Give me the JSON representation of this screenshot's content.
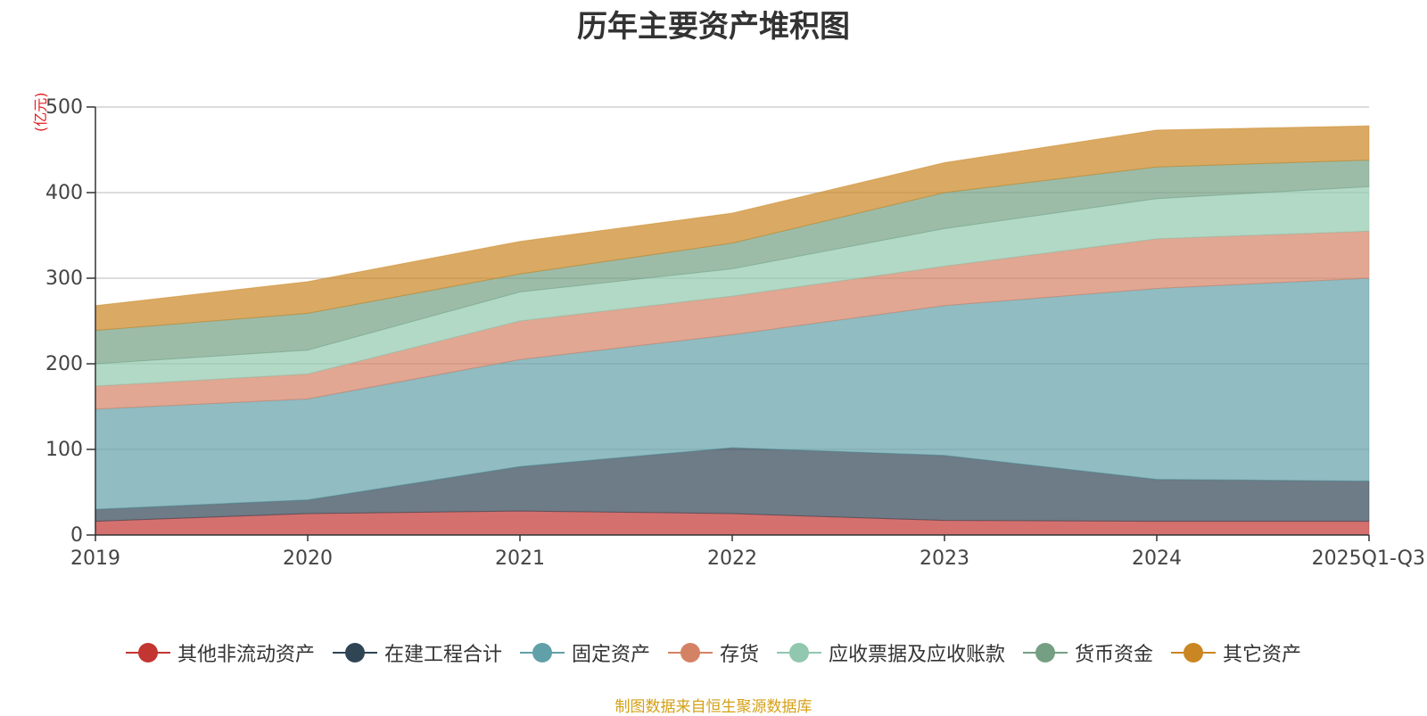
{
  "chart_data": {
    "type": "area",
    "stacked": true,
    "title": "历年主要资产堆积图",
    "ylabel": "(亿元)",
    "xlabel": "",
    "ylim": [
      0,
      500
    ],
    "yticks": [
      0,
      100,
      200,
      300,
      400,
      500
    ],
    "categories": [
      "2019",
      "2020",
      "2021",
      "2022",
      "2023",
      "2024",
      "2025Q1-Q3"
    ],
    "series": [
      {
        "name": "其他非流动资产",
        "color": "#c23531",
        "values": [
          16,
          25,
          28,
          25,
          17,
          16,
          16
        ]
      },
      {
        "name": "在建工程合计",
        "color": "#2f4554",
        "values": [
          14,
          16,
          52,
          77,
          76,
          49,
          47
        ]
      },
      {
        "name": "固定资产",
        "color": "#61a0a8",
        "values": [
          117,
          118,
          125,
          132,
          175,
          223,
          237
        ]
      },
      {
        "name": "存货",
        "color": "#d48265",
        "values": [
          27,
          29,
          45,
          45,
          46,
          58,
          55
        ]
      },
      {
        "name": "应收票据及应收账款",
        "color": "#91c7ae",
        "values": [
          26,
          28,
          34,
          32,
          44,
          47,
          52
        ]
      },
      {
        "name": "货币资金",
        "color": "#749f83",
        "values": [
          39,
          43,
          21,
          30,
          42,
          37,
          31
        ]
      },
      {
        "name": "其它资产",
        "color": "#ca8622",
        "values": [
          29,
          37,
          38,
          35,
          35,
          43,
          40
        ]
      }
    ],
    "grid": true,
    "legend_position": "bottom"
  },
  "source_note": "制图数据来自恒生聚源数据库"
}
